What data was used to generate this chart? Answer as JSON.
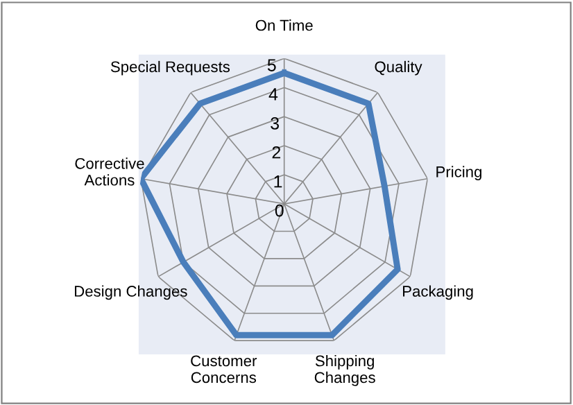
{
  "chart_data": {
    "type": "radar",
    "categories": [
      "On Time",
      "Quality",
      "Pricing",
      "Packaging",
      "Shipping\nChanges",
      "Customer\nConcerns",
      "Design Changes",
      "Corrective\nActions",
      "Special Requests"
    ],
    "series": [
      {
        "color": "#4a7ebb",
        "values": [
          4.5,
          4.5,
          3.5,
          4.5,
          4.8,
          4.8,
          4.0,
          5.0,
          4.5
        ]
      }
    ],
    "ylim": [
      0,
      5
    ],
    "yticks": [
      0,
      1,
      2,
      3,
      4,
      5
    ],
    "grid": true,
    "marker": "none",
    "line_style": "solid"
  }
}
